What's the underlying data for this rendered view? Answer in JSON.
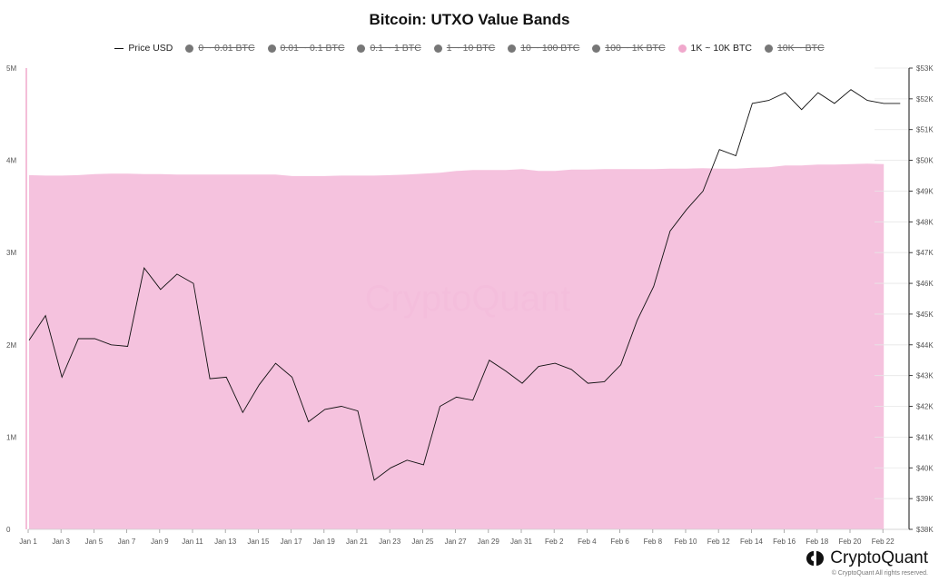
{
  "title": "Bitcoin: UTXO Value Bands",
  "legend": [
    {
      "label": "Price USD",
      "type": "line",
      "color": "#111111",
      "active": true
    },
    {
      "label": "0 ~ 0.01 BTC",
      "type": "dot",
      "color": "#777777",
      "active": false
    },
    {
      "label": "0.01 ~ 0.1 BTC",
      "type": "dot",
      "color": "#777777",
      "active": false
    },
    {
      "label": "0.1 ~ 1 BTC",
      "type": "dot",
      "color": "#777777",
      "active": false
    },
    {
      "label": "1 ~ 10 BTC",
      "type": "dot",
      "color": "#777777",
      "active": false
    },
    {
      "label": "10 ~ 100 BTC",
      "type": "dot",
      "color": "#777777",
      "active": false
    },
    {
      "label": "100 ~ 1K BTC",
      "type": "dot",
      "color": "#777777",
      "active": false
    },
    {
      "label": "1K ~ 10K BTC",
      "type": "dot",
      "color": "#f0a8cc",
      "active": true
    },
    {
      "label": "10K ~ BTC",
      "type": "dot",
      "color": "#777777",
      "active": false
    }
  ],
  "watermark": "CryptoQuant",
  "brand": {
    "name": "CryptoQuant",
    "copyright": "© CryptoQuant All rights reserved."
  },
  "chart_data": {
    "type": "area",
    "x_ticks": [
      "Jan 1",
      "Jan 3",
      "Jan 5",
      "Jan 7",
      "Jan 9",
      "Jan 11",
      "Jan 13",
      "Jan 15",
      "Jan 17",
      "Jan 19",
      "Jan 21",
      "Jan 23",
      "Jan 25",
      "Jan 27",
      "Jan 29",
      "Jan 31",
      "Feb 2",
      "Feb 4",
      "Feb 6",
      "Feb 8",
      "Feb 10",
      "Feb 12",
      "Feb 14",
      "Feb 16",
      "Feb 18",
      "Feb 20",
      "Feb 22"
    ],
    "left_axis": {
      "ticks": [
        "0",
        "1M",
        "2M",
        "3M",
        "4M",
        "5M"
      ],
      "range": [
        0,
        5000000
      ]
    },
    "right_axis": {
      "ticks": [
        "$38K",
        "$39K",
        "$40K",
        "$41K",
        "$42K",
        "$43K",
        "$44K",
        "$45K",
        "$46K",
        "$47K",
        "$48K",
        "$49K",
        "$50K",
        "$51K",
        "$52K",
        "$53K"
      ],
      "range": [
        38000,
        53000
      ]
    },
    "series": [
      {
        "name": "1K ~ 10K BTC",
        "axis": "left",
        "color": "#f4bddb",
        "x": [
          0,
          1,
          2,
          3,
          4,
          5,
          6,
          7,
          8,
          9,
          10,
          11,
          12,
          13,
          14,
          15,
          16,
          17,
          18,
          19,
          20,
          21,
          22,
          23,
          24,
          25,
          26,
          27,
          28,
          29,
          30,
          31,
          32,
          33,
          34,
          35,
          36,
          37,
          38,
          39,
          40,
          41,
          42,
          43,
          44,
          45,
          46,
          47,
          48,
          49,
          50,
          51,
          52
        ],
        "values": [
          3840000,
          3835000,
          3835000,
          3840000,
          3850000,
          3855000,
          3855000,
          3850000,
          3850000,
          3845000,
          3845000,
          3845000,
          3845000,
          3845000,
          3845000,
          3845000,
          3830000,
          3830000,
          3830000,
          3835000,
          3835000,
          3835000,
          3840000,
          3845000,
          3855000,
          3865000,
          3885000,
          3895000,
          3895000,
          3895000,
          3905000,
          3885000,
          3885000,
          3900000,
          3900000,
          3905000,
          3905000,
          3905000,
          3905000,
          3910000,
          3910000,
          3915000,
          3910000,
          3910000,
          3920000,
          3925000,
          3945000,
          3945000,
          3955000,
          3955000,
          3960000,
          3965000,
          3960000
        ]
      },
      {
        "name": "Price USD",
        "axis": "right",
        "color": "#111111",
        "x": [
          0,
          1,
          2,
          3,
          4,
          5,
          6,
          7,
          8,
          9,
          10,
          11,
          12,
          13,
          14,
          15,
          16,
          17,
          18,
          19,
          20,
          21,
          22,
          23,
          24,
          25,
          26,
          27,
          28,
          29,
          30,
          31,
          32,
          33,
          34,
          35,
          36,
          37,
          38,
          39,
          40,
          41,
          42,
          43,
          44,
          45,
          46,
          47,
          48,
          49,
          50,
          51,
          52,
          53
        ],
        "values": [
          44150,
          44950,
          42950,
          44200,
          44200,
          44000,
          43950,
          46500,
          45800,
          46300,
          46000,
          42900,
          42950,
          41800,
          42700,
          43400,
          42950,
          41500,
          41900,
          42000,
          41850,
          39600,
          40000,
          40250,
          40100,
          42000,
          42300,
          42200,
          43500,
          43150,
          42750,
          43300,
          43400,
          43200,
          42750,
          42800,
          43350,
          44800,
          45900,
          47700,
          48400,
          49000,
          50350,
          50150,
          51850,
          51950,
          52200,
          51650,
          52200,
          51850,
          52300,
          51950,
          51850,
          51850
        ]
      }
    ]
  }
}
